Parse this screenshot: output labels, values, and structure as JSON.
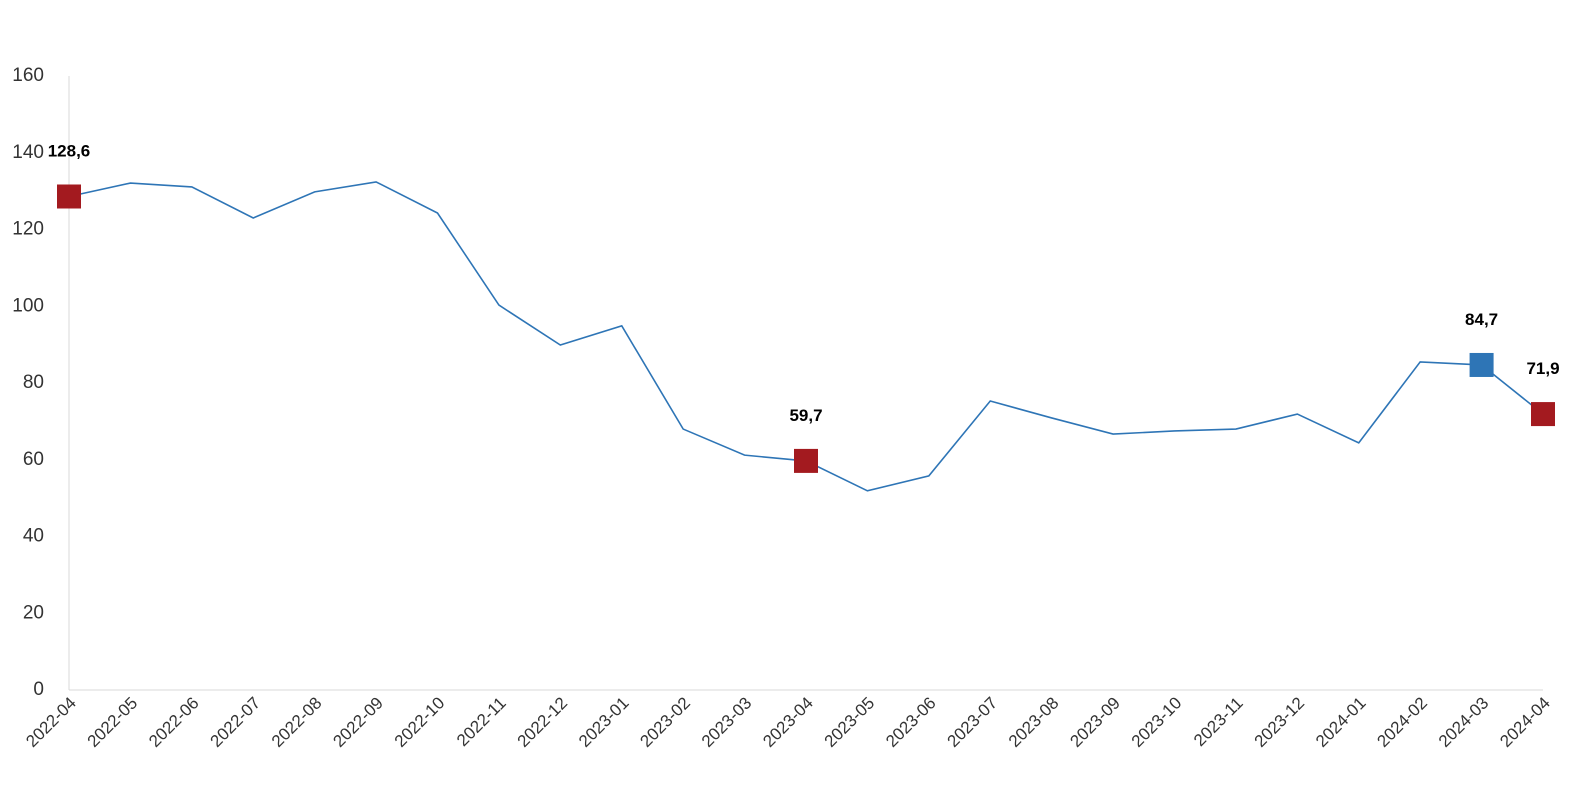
{
  "chart_data": {
    "type": "line",
    "categories": [
      "2022-04",
      "2022-05",
      "2022-06",
      "2022-07",
      "2022-08",
      "2022-09",
      "2022-10",
      "2022-11",
      "2022-12",
      "2023-01",
      "2023-02",
      "2023-03",
      "2023-04",
      "2023-05",
      "2023-06",
      "2023-07",
      "2023-08",
      "2023-09",
      "2023-10",
      "2023-11",
      "2023-12",
      "2024-01",
      "2024-02",
      "2024-03",
      "2024-04"
    ],
    "series": [
      {
        "color": "#2e75b6",
        "values": [
          128.6,
          132.1,
          131.1,
          123.0,
          129.8,
          132.4,
          124.3,
          100.3,
          89.9,
          94.9,
          68.0,
          61.2,
          59.7,
          51.9,
          55.8,
          75.3,
          70.9,
          66.7,
          67.5,
          68.0,
          71.9,
          64.4,
          85.5,
          84.7,
          71.9
        ],
        "value_labels": [
          "128,6",
          null,
          null,
          null,
          null,
          null,
          null,
          null,
          null,
          null,
          null,
          null,
          "59,7",
          null,
          null,
          null,
          null,
          null,
          null,
          null,
          null,
          null,
          null,
          "84,7",
          "71,9"
        ],
        "marker_colors": [
          "#a31a1f",
          null,
          null,
          null,
          null,
          null,
          null,
          null,
          null,
          null,
          null,
          null,
          "#a31a1f",
          null,
          null,
          null,
          null,
          null,
          null,
          null,
          null,
          null,
          null,
          "#2e75b6",
          "#a31a1f"
        ]
      }
    ],
    "ylim": [
      0,
      160
    ],
    "yticks": [
      0,
      20,
      40,
      60,
      80,
      100,
      120,
      140,
      160
    ],
    "grid": false
  }
}
